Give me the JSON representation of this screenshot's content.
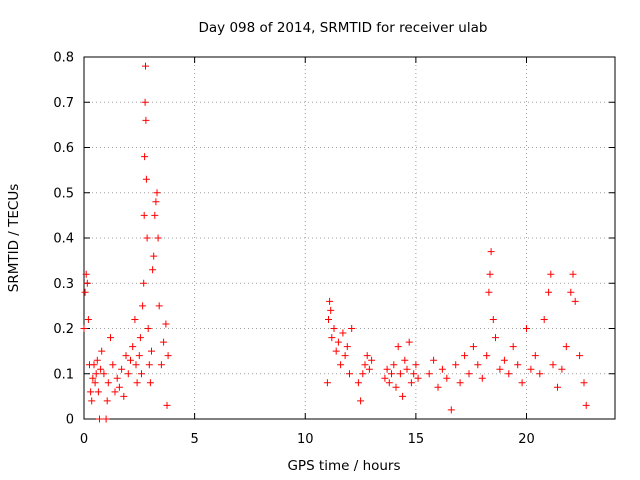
{
  "chart_data": {
    "type": "scatter",
    "title": "Day 098 of 2014, SRMTID for receiver ulab",
    "xlabel": "GPS time / hours",
    "ylabel": "SRMTID / TECUs",
    "xlim": [
      0,
      24
    ],
    "ylim": [
      0,
      0.8
    ],
    "x_ticks": [
      "0",
      "5",
      "10",
      "15",
      "20"
    ],
    "y_ticks": [
      "0",
      "0.1",
      "0.2",
      "0.3",
      "0.4",
      "0.5",
      "0.6",
      "0.7",
      "0.8"
    ],
    "x_tick_values": [
      0,
      5,
      10,
      15,
      20
    ],
    "y_tick_values": [
      0,
      0.1,
      0.2,
      0.3,
      0.4,
      0.5,
      0.6,
      0.7,
      0.8
    ],
    "grid": true,
    "marker": "plus",
    "color": "#ff0000",
    "series": [
      {
        "name": "SRMTID",
        "points": [
          [
            0.0,
            0.2
          ],
          [
            0.05,
            0.28
          ],
          [
            0.1,
            0.32
          ],
          [
            0.15,
            0.3
          ],
          [
            0.2,
            0.22
          ],
          [
            0.25,
            0.12
          ],
          [
            0.3,
            0.06
          ],
          [
            0.35,
            0.04
          ],
          [
            0.4,
            0.09
          ],
          [
            0.45,
            0.12
          ],
          [
            0.5,
            0.08
          ],
          [
            0.55,
            0.1
          ],
          [
            0.6,
            0.13
          ],
          [
            0.65,
            0.06
          ],
          [
            0.7,
            0.0
          ],
          [
            0.75,
            0.11
          ],
          [
            0.8,
            0.15
          ],
          [
            0.9,
            0.1
          ],
          [
            1.0,
            0.0
          ],
          [
            1.05,
            0.04
          ],
          [
            1.1,
            0.08
          ],
          [
            1.2,
            0.18
          ],
          [
            1.3,
            0.12
          ],
          [
            1.4,
            0.06
          ],
          [
            1.5,
            0.09
          ],
          [
            1.6,
            0.07
          ],
          [
            1.7,
            0.11
          ],
          [
            1.8,
            0.05
          ],
          [
            1.9,
            0.14
          ],
          [
            2.0,
            0.1
          ],
          [
            2.1,
            0.13
          ],
          [
            2.2,
            0.16
          ],
          [
            2.3,
            0.22
          ],
          [
            2.35,
            0.12
          ],
          [
            2.4,
            0.08
          ],
          [
            2.5,
            0.14
          ],
          [
            2.55,
            0.18
          ],
          [
            2.6,
            0.1
          ],
          [
            2.65,
            0.25
          ],
          [
            2.7,
            0.3
          ],
          [
            2.72,
            0.45
          ],
          [
            2.74,
            0.58
          ],
          [
            2.76,
            0.7
          ],
          [
            2.78,
            0.78
          ],
          [
            2.8,
            0.66
          ],
          [
            2.82,
            0.53
          ],
          [
            2.85,
            0.4
          ],
          [
            2.9,
            0.2
          ],
          [
            2.95,
            0.12
          ],
          [
            3.0,
            0.08
          ],
          [
            3.05,
            0.15
          ],
          [
            3.1,
            0.33
          ],
          [
            3.15,
            0.36
          ],
          [
            3.2,
            0.45
          ],
          [
            3.25,
            0.48
          ],
          [
            3.3,
            0.5
          ],
          [
            3.35,
            0.4
          ],
          [
            3.4,
            0.25
          ],
          [
            3.5,
            0.12
          ],
          [
            3.6,
            0.17
          ],
          [
            3.7,
            0.21
          ],
          [
            3.75,
            0.03
          ],
          [
            3.8,
            0.14
          ],
          [
            11.0,
            0.08
          ],
          [
            11.05,
            0.22
          ],
          [
            11.1,
            0.26
          ],
          [
            11.15,
            0.24
          ],
          [
            11.2,
            0.18
          ],
          [
            11.3,
            0.2
          ],
          [
            11.4,
            0.15
          ],
          [
            11.5,
            0.17
          ],
          [
            11.6,
            0.12
          ],
          [
            11.7,
            0.19
          ],
          [
            11.8,
            0.14
          ],
          [
            11.9,
            0.16
          ],
          [
            12.0,
            0.1
          ],
          [
            12.1,
            0.2
          ],
          [
            12.4,
            0.08
          ],
          [
            12.5,
            0.04
          ],
          [
            12.6,
            0.1
          ],
          [
            12.7,
            0.12
          ],
          [
            12.8,
            0.14
          ],
          [
            12.9,
            0.11
          ],
          [
            13.0,
            0.13
          ],
          [
            13.6,
            0.09
          ],
          [
            13.7,
            0.11
          ],
          [
            13.8,
            0.08
          ],
          [
            13.9,
            0.1
          ],
          [
            14.0,
            0.12
          ],
          [
            14.1,
            0.07
          ],
          [
            14.2,
            0.16
          ],
          [
            14.3,
            0.1
          ],
          [
            14.4,
            0.05
          ],
          [
            14.5,
            0.13
          ],
          [
            14.6,
            0.11
          ],
          [
            14.7,
            0.17
          ],
          [
            14.8,
            0.08
          ],
          [
            14.9,
            0.1
          ],
          [
            15.0,
            0.12
          ],
          [
            15.1,
            0.09
          ],
          [
            15.6,
            0.1
          ],
          [
            15.8,
            0.13
          ],
          [
            16.0,
            0.07
          ],
          [
            16.2,
            0.11
          ],
          [
            16.4,
            0.09
          ],
          [
            16.6,
            0.02
          ],
          [
            16.8,
            0.12
          ],
          [
            17.0,
            0.08
          ],
          [
            17.2,
            0.14
          ],
          [
            17.4,
            0.1
          ],
          [
            17.6,
            0.16
          ],
          [
            17.8,
            0.12
          ],
          [
            18.0,
            0.09
          ],
          [
            18.2,
            0.14
          ],
          [
            18.3,
            0.28
          ],
          [
            18.35,
            0.32
          ],
          [
            18.4,
            0.37
          ],
          [
            18.5,
            0.22
          ],
          [
            18.6,
            0.18
          ],
          [
            18.8,
            0.11
          ],
          [
            19.0,
            0.13
          ],
          [
            19.2,
            0.1
          ],
          [
            19.4,
            0.16
          ],
          [
            19.6,
            0.12
          ],
          [
            19.8,
            0.08
          ],
          [
            20.0,
            0.2
          ],
          [
            20.2,
            0.11
          ],
          [
            20.4,
            0.14
          ],
          [
            20.6,
            0.1
          ],
          [
            20.8,
            0.22
          ],
          [
            21.0,
            0.28
          ],
          [
            21.1,
            0.32
          ],
          [
            21.2,
            0.12
          ],
          [
            21.4,
            0.07
          ],
          [
            21.6,
            0.11
          ],
          [
            21.8,
            0.16
          ],
          [
            22.0,
            0.28
          ],
          [
            22.1,
            0.32
          ],
          [
            22.2,
            0.26
          ],
          [
            22.4,
            0.14
          ],
          [
            22.6,
            0.08
          ],
          [
            22.7,
            0.03
          ]
        ]
      }
    ]
  }
}
